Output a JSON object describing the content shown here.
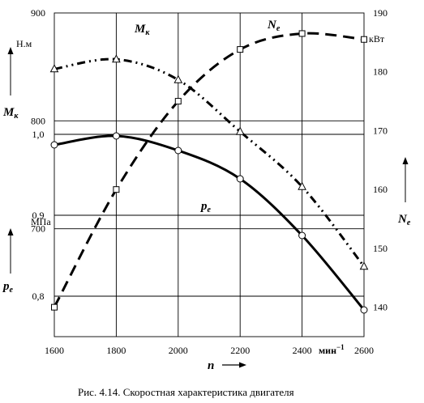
{
  "chart_data": {
    "type": "line",
    "caption": "Рис. 4.14.  Скоростная характеристика двигателя",
    "x": [
      1600,
      1800,
      2000,
      2200,
      2400,
      2600
    ],
    "x_ticks": [
      "1600",
      "1800",
      "2000",
      "2200",
      "2400",
      "2600"
    ],
    "x_axis": {
      "symbol": "n",
      "unit": "мин",
      "unit_power": "−1",
      "range": [
        1600,
        2600
      ]
    },
    "grid": true,
    "axes": {
      "mk": {
        "symbol": "M",
        "subscript": "к",
        "unit": "Н.м",
        "range": [
          600,
          900
        ],
        "ticks": [
          900,
          800,
          700
        ],
        "side": "left-upper"
      },
      "pe": {
        "symbol": "p",
        "subscript": "e",
        "unit": "МПа",
        "range": [
          0.75,
          1.15
        ],
        "ticks": [
          "1,0",
          "0,9",
          "0,8"
        ],
        "side": "left-lower"
      },
      "ne": {
        "symbol": "N",
        "subscript": "e",
        "unit": "кВт",
        "range": [
          135,
          190
        ],
        "ticks": [
          190,
          180,
          170,
          160,
          150,
          140
        ],
        "side": "right"
      }
    },
    "series": [
      {
        "key": "mk",
        "symbol": "M",
        "subscript": "к",
        "axis": "mk",
        "style": "dash-dot-dot",
        "marker": "triangle",
        "x": [
          1600,
          1800,
          2000,
          2200,
          2400,
          2600
        ],
        "values": [
          848,
          857,
          838,
          790,
          739,
          665
        ]
      },
      {
        "key": "ne",
        "symbol": "N",
        "subscript": "e",
        "axis": "ne",
        "style": "dashed",
        "marker": "square",
        "x": [
          1600,
          1800,
          2000,
          2200,
          2400,
          2600
        ],
        "values": [
          140,
          160,
          175,
          183.8,
          186.5,
          185.5
        ]
      },
      {
        "key": "pe",
        "symbol": "p",
        "subscript": "e",
        "axis": "pe",
        "style": "solid",
        "marker": "circle",
        "x": [
          1600,
          1800,
          2000,
          2200,
          2400,
          2600
        ],
        "values": [
          0.987,
          0.998,
          0.98,
          0.945,
          0.875,
          0.783
        ]
      }
    ]
  }
}
